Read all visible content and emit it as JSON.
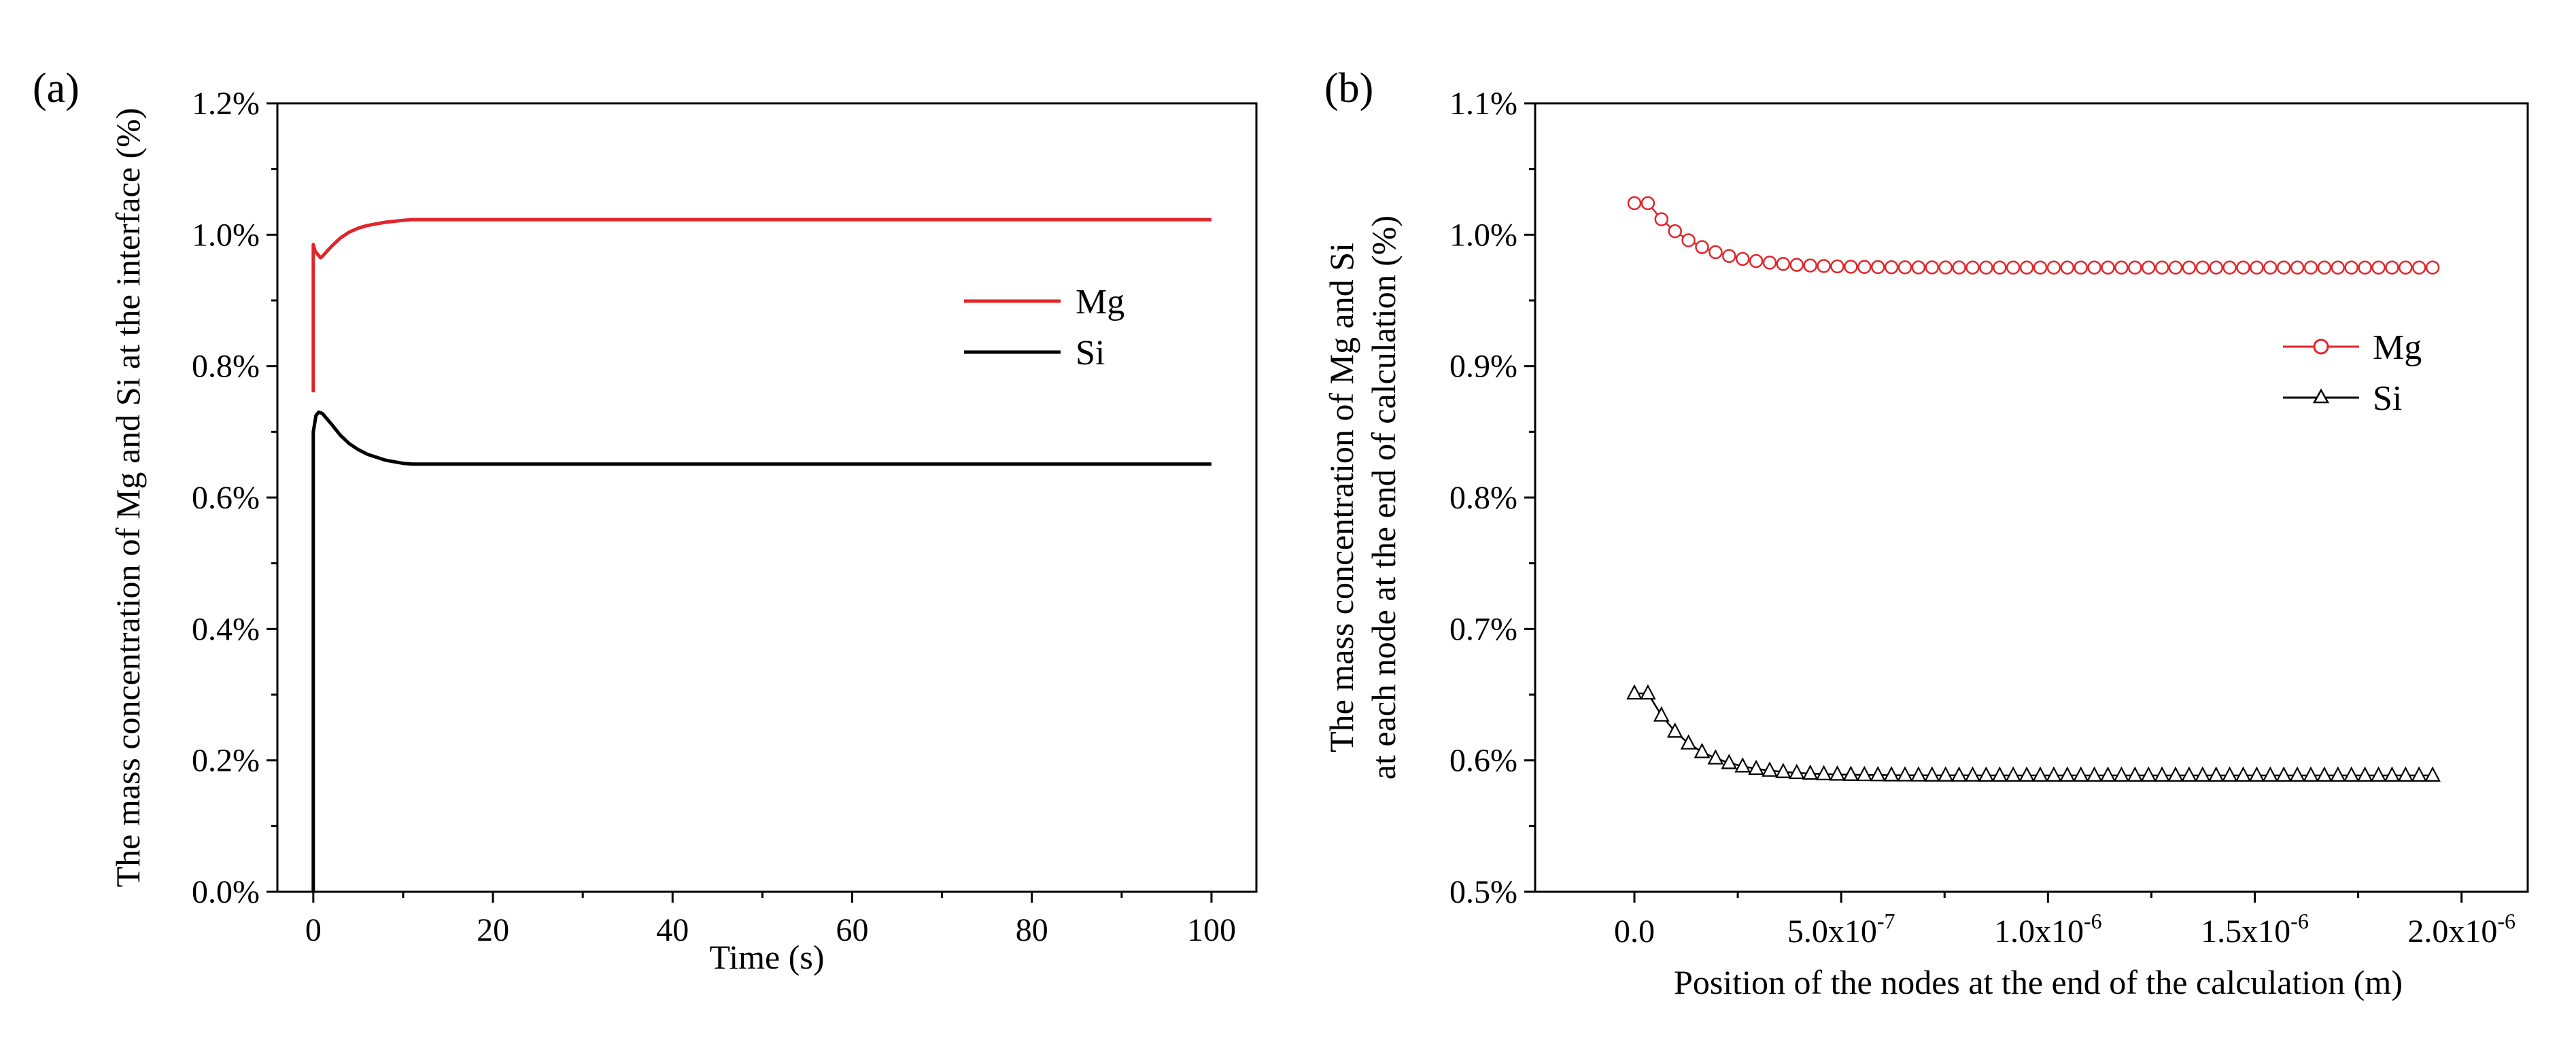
{
  "chart_data": [
    {
      "panel_label": "(a)",
      "type": "line",
      "title": "",
      "xlabel": "Time (s)",
      "ylabel": "The mass concentration of Mg and Si at the interface (%)",
      "xlim": [
        -4,
        105
      ],
      "ylim": [
        0.0,
        1.2
      ],
      "x_ticks": [
        0,
        20,
        40,
        60,
        80,
        100
      ],
      "x_tick_labels": [
        "0",
        "20",
        "40",
        "60",
        "80",
        "100"
      ],
      "y_ticks": [
        0.0,
        0.2,
        0.4,
        0.6,
        0.8,
        1.0,
        1.2
      ],
      "y_tick_labels": [
        "0.0%",
        "0.2%",
        "0.4%",
        "0.6%",
        "0.8%",
        "1.0%",
        "1.2%"
      ],
      "grid": false,
      "legend_position": "center-right",
      "series": [
        {
          "name": "Mg",
          "color": "#e0262b",
          "marker": "none",
          "x": [
            0,
            0,
            0.2,
            0.5,
            0.8,
            1,
            2,
            3,
            4,
            5,
            6,
            8,
            10,
            11,
            20,
            40,
            60,
            80,
            100
          ],
          "y": [
            0.76,
            0.985,
            0.975,
            0.97,
            0.965,
            0.967,
            0.982,
            0.995,
            1.004,
            1.01,
            1.014,
            1.019,
            1.022,
            1.023,
            1.023,
            1.023,
            1.023,
            1.023,
            1.023
          ]
        },
        {
          "name": "Si",
          "color": "#000000",
          "marker": "none",
          "x": [
            0,
            0,
            0.3,
            0.6,
            1,
            2,
            3,
            4,
            5,
            6,
            8,
            10,
            11,
            20,
            40,
            60,
            80,
            100
          ],
          "y": [
            0.0,
            0.7,
            0.725,
            0.73,
            0.728,
            0.712,
            0.695,
            0.682,
            0.673,
            0.666,
            0.657,
            0.652,
            0.651,
            0.651,
            0.651,
            0.651,
            0.651,
            0.651
          ]
        }
      ]
    },
    {
      "panel_label": "(b)",
      "type": "line",
      "title": "",
      "xlabel": "Position of the nodes at the end of the calculation (m)",
      "ylabel_line1": "The mass concentration of Mg and Si",
      "ylabel_line2": "at each node at the end of calculation (%)",
      "xlim": [
        -2.4e-07,
        2.16e-06
      ],
      "ylim": [
        0.005,
        0.011
      ],
      "x_ticks": [
        0,
        5e-07,
        1e-06,
        1.5e-06,
        2e-06
      ],
      "x_tick_labels": [
        {
          "base": "0.0",
          "exp": ""
        },
        {
          "base": "5.0x10",
          "exp": "-7"
        },
        {
          "base": "1.0x10",
          "exp": "-6"
        },
        {
          "base": "1.5x10",
          "exp": "-6"
        },
        {
          "base": "2.0x10",
          "exp": "-6"
        }
      ],
      "y_ticks": [
        0.005,
        0.006,
        0.007,
        0.008,
        0.009,
        0.01,
        0.011
      ],
      "y_tick_labels": [
        "0.5%",
        "0.6%",
        "0.7%",
        "0.8%",
        "0.9%",
        "1.0%",
        "1.1%"
      ],
      "grid": false,
      "legend_position": "center-right",
      "node_count": 60,
      "x_start": 0,
      "x_end": 1.93e-06,
      "series": [
        {
          "name": "Mg",
          "color": "#e0262b",
          "marker": "circle",
          "start": 0.01024,
          "plateau": 0.00975,
          "decay_nodes": 3.5
        },
        {
          "name": "Si",
          "color": "#000000",
          "marker": "triangle",
          "start": 0.00651,
          "plateau": 0.005885,
          "decay_nodes": 3.2
        }
      ]
    }
  ]
}
